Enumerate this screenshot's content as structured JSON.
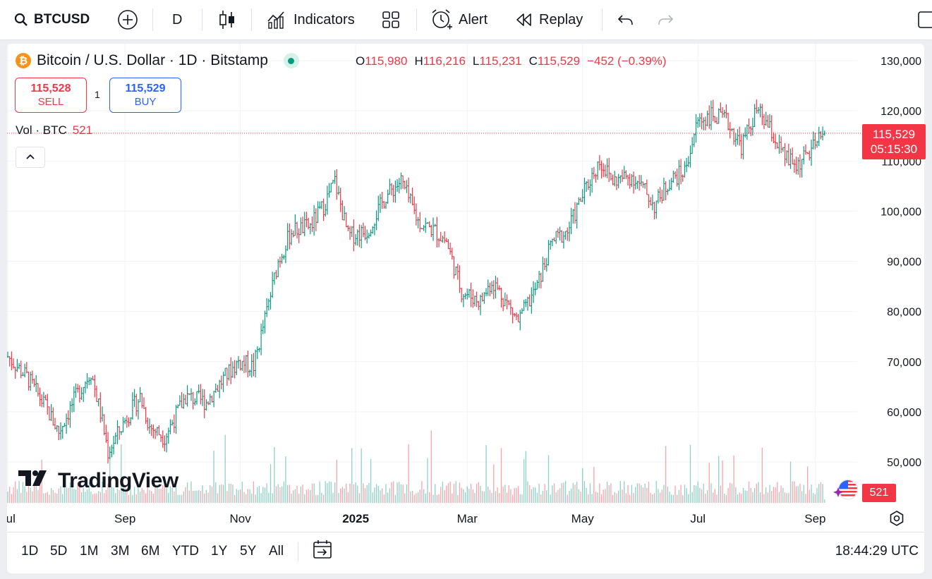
{
  "toolbar": {
    "symbol": "BTCUSD",
    "interval": "D",
    "indicators_label": "Indicators",
    "alert_label": "Alert",
    "replay_label": "Replay"
  },
  "legend": {
    "logo_letter": "₿",
    "title": "Bitcoin / U.S. Dollar · 1D · Bitstamp",
    "ohlc": [
      {
        "k": "O",
        "v": "115,980"
      },
      {
        "k": "H",
        "v": "116,216"
      },
      {
        "k": "L",
        "v": "115,231"
      },
      {
        "k": "C",
        "v": "115,529"
      }
    ],
    "change": "−452 (−0.39%)"
  },
  "trade": {
    "sell_price": "115,528",
    "sell_label": "SELL",
    "quantity": "1",
    "buy_price": "115,529",
    "buy_label": "BUY"
  },
  "volume": {
    "label": "Vol · BTC",
    "value": "521"
  },
  "price_tag": {
    "price": "115,529",
    "countdown": "05:15:30"
  },
  "watermark": "TradingView",
  "ranges": [
    "1D",
    "5D",
    "1M",
    "3M",
    "6M",
    "YTD",
    "1Y",
    "5Y",
    "All"
  ],
  "clock": "18:44:29 UTC",
  "colors": {
    "up": "#089981",
    "down": "#f23645",
    "accent": "#2962ff"
  },
  "chart_data": {
    "type": "candlestick",
    "title": "Bitcoin / U.S. Dollar · 1D · Bitstamp",
    "y_ticks": [
      "130,000",
      "120,000",
      "110,000",
      "100,000",
      "90,000",
      "80,000",
      "70,000",
      "60,000",
      "50,000"
    ],
    "ylim": [
      45000,
      132000
    ],
    "x_ticks": [
      "Jul",
      "Sep",
      "Nov",
      "2025",
      "Mar",
      "May",
      "Jul",
      "Sep"
    ],
    "x_tick_bold": [
      false,
      false,
      false,
      true,
      false,
      false,
      false,
      false
    ],
    "x_tick_days": [
      0,
      62,
      123,
      184,
      243,
      304,
      365,
      427
    ],
    "bars_start": "2024-06-25",
    "bars_interval": "1 day",
    "close_trend": [
      {
        "d": 0,
        "v": 71000
      },
      {
        "d": 10,
        "v": 67000
      },
      {
        "d": 20,
        "v": 61000
      },
      {
        "d": 27,
        "v": 56000
      },
      {
        "d": 36,
        "v": 63000
      },
      {
        "d": 44,
        "v": 68000
      },
      {
        "d": 50,
        "v": 58000
      },
      {
        "d": 53,
        "v": 52000
      },
      {
        "d": 63,
        "v": 59000
      },
      {
        "d": 70,
        "v": 63000
      },
      {
        "d": 75,
        "v": 57000
      },
      {
        "d": 83,
        "v": 55000
      },
      {
        "d": 94,
        "v": 63000
      },
      {
        "d": 105,
        "v": 62000
      },
      {
        "d": 115,
        "v": 67000
      },
      {
        "d": 122,
        "v": 70000
      },
      {
        "d": 130,
        "v": 69000
      },
      {
        "d": 137,
        "v": 80000
      },
      {
        "d": 143,
        "v": 90000
      },
      {
        "d": 150,
        "v": 96000
      },
      {
        "d": 160,
        "v": 97000
      },
      {
        "d": 167,
        "v": 101000
      },
      {
        "d": 173,
        "v": 106000
      },
      {
        "d": 180,
        "v": 95000
      },
      {
        "d": 190,
        "v": 96000
      },
      {
        "d": 200,
        "v": 103000
      },
      {
        "d": 208,
        "v": 106000
      },
      {
        "d": 217,
        "v": 98000
      },
      {
        "d": 226,
        "v": 96000
      },
      {
        "d": 232,
        "v": 94000
      },
      {
        "d": 240,
        "v": 84000
      },
      {
        "d": 250,
        "v": 82000
      },
      {
        "d": 256,
        "v": 86000
      },
      {
        "d": 260,
        "v": 84000
      },
      {
        "d": 265,
        "v": 81000
      },
      {
        "d": 270,
        "v": 78000
      },
      {
        "d": 280,
        "v": 85000
      },
      {
        "d": 288,
        "v": 94000
      },
      {
        "d": 296,
        "v": 96000
      },
      {
        "d": 305,
        "v": 104000
      },
      {
        "d": 313,
        "v": 110000
      },
      {
        "d": 320,
        "v": 106000
      },
      {
        "d": 330,
        "v": 107000
      },
      {
        "d": 337,
        "v": 104000
      },
      {
        "d": 342,
        "v": 101000
      },
      {
        "d": 350,
        "v": 106000
      },
      {
        "d": 358,
        "v": 108000
      },
      {
        "d": 365,
        "v": 118000
      },
      {
        "d": 372,
        "v": 119000
      },
      {
        "d": 380,
        "v": 118000
      },
      {
        "d": 388,
        "v": 113000
      },
      {
        "d": 396,
        "v": 120000
      },
      {
        "d": 402,
        "v": 117000
      },
      {
        "d": 410,
        "v": 111000
      },
      {
        "d": 417,
        "v": 109000
      },
      {
        "d": 425,
        "v": 112000
      },
      {
        "d": 432,
        "v": 115529
      }
    ]
  }
}
